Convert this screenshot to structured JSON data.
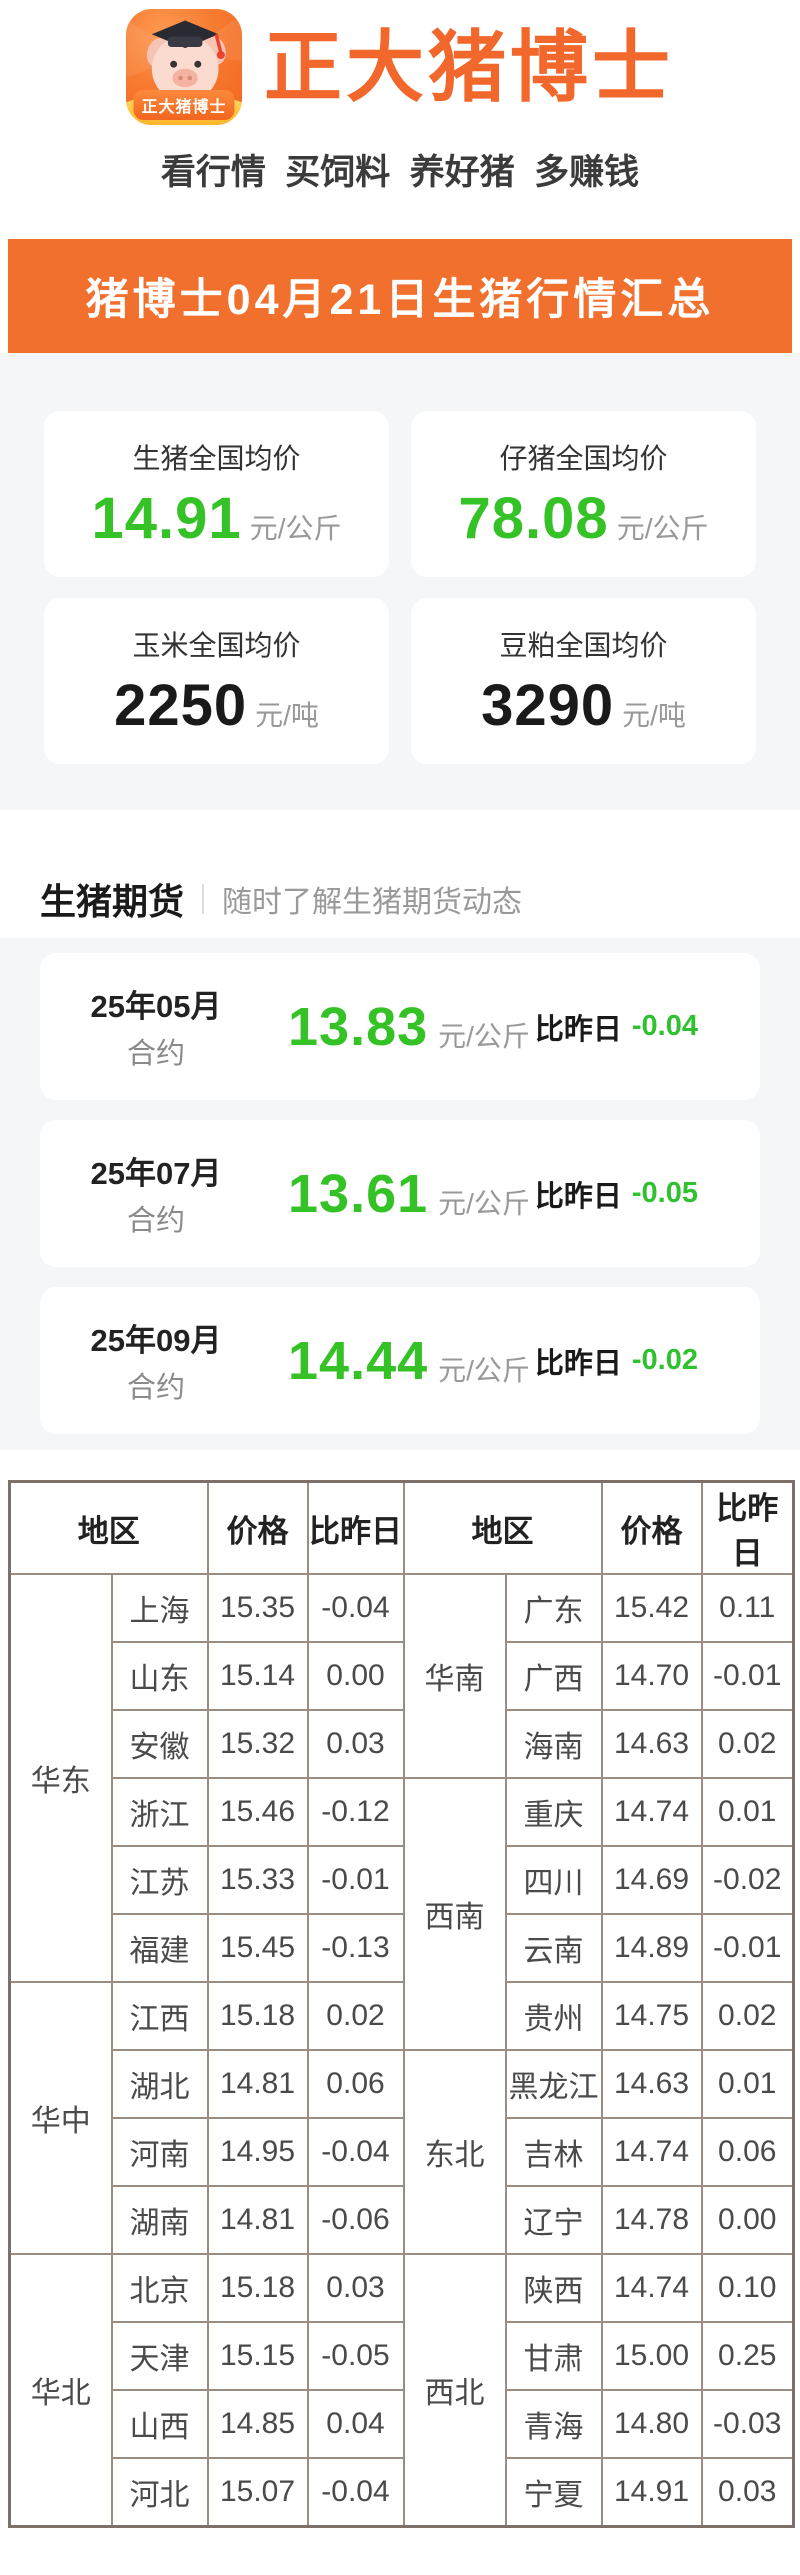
{
  "header": {
    "app_name": "正大猪博士",
    "icon_badge": "正大猪博士",
    "tagline": "看行情  买饲料  养好猪  多赚钱"
  },
  "banner": {
    "title": "猪博士04月21日生猪行情汇总"
  },
  "colors": {
    "brand_orange": "#f2702d",
    "title_orange": "#f2672b",
    "up_red": "#e8150b",
    "down_green": "#2fc12f",
    "value_green": "#35c226",
    "table_border": "#9c8d83",
    "group_cream": "#fdf5eb",
    "section_gray": "#f5f6f7"
  },
  "summary_cards": [
    {
      "label": "生猪全国均价",
      "value": "14.91",
      "unit": "元/公斤",
      "value_color": "green"
    },
    {
      "label": "仔猪全国均价",
      "value": "78.08",
      "unit": "元/公斤",
      "value_color": "green"
    },
    {
      "label": "玉米全国均价",
      "value": "2250",
      "unit": "元/吨",
      "value_color": "dark"
    },
    {
      "label": "豆粕全国均价",
      "value": "3290",
      "unit": "元/吨",
      "value_color": "dark"
    }
  ],
  "futures_section": {
    "title": "生猪期货",
    "subtitle": "随时了解生猪期货动态",
    "cards": [
      {
        "contract_line1": "25年05月",
        "contract_line2": "合约",
        "price": "13.83",
        "unit": "元/公斤",
        "compare_label": "比昨日",
        "change": "-0.04"
      },
      {
        "contract_line1": "25年07月",
        "contract_line2": "合约",
        "price": "13.61",
        "unit": "元/公斤",
        "compare_label": "比昨日",
        "change": "-0.05"
      },
      {
        "contract_line1": "25年09月",
        "contract_line2": "合约",
        "price": "14.44",
        "unit": "元/公斤",
        "compare_label": "比昨日",
        "change": "-0.02"
      }
    ]
  },
  "price_table": {
    "headers": [
      "地区",
      "价格",
      "比昨日",
      "地区",
      "价格",
      "比昨日"
    ],
    "left_groups": [
      {
        "name": "华东",
        "shaded": true,
        "rows": [
          [
            "上海",
            "15.35",
            "-0.04"
          ],
          [
            "山东",
            "15.14",
            "0.00"
          ],
          [
            "安徽",
            "15.32",
            "0.03"
          ],
          [
            "浙江",
            "15.46",
            "-0.12"
          ],
          [
            "江苏",
            "15.33",
            "-0.01"
          ],
          [
            "福建",
            "15.45",
            "-0.13"
          ]
        ]
      },
      {
        "name": "华中",
        "shaded": false,
        "rows": [
          [
            "江西",
            "15.18",
            "0.02"
          ],
          [
            "湖北",
            "14.81",
            "0.06"
          ],
          [
            "河南",
            "14.95",
            "-0.04"
          ],
          [
            "湖南",
            "14.81",
            "-0.06"
          ]
        ]
      },
      {
        "name": "华北",
        "shaded": true,
        "rows": [
          [
            "北京",
            "15.18",
            "0.03"
          ],
          [
            "天津",
            "15.15",
            "-0.05"
          ],
          [
            "山西",
            "14.85",
            "0.04"
          ],
          [
            "河北",
            "15.07",
            "-0.04"
          ]
        ]
      }
    ],
    "right_groups": [
      {
        "name": "华南",
        "shaded": true,
        "rows": [
          [
            "广东",
            "15.42",
            "0.11"
          ],
          [
            "广西",
            "14.70",
            "-0.01"
          ],
          [
            "海南",
            "14.63",
            "0.02"
          ]
        ]
      },
      {
        "name": "西南",
        "shaded": false,
        "rows": [
          [
            "重庆",
            "14.74",
            "0.01"
          ],
          [
            "四川",
            "14.69",
            "-0.02"
          ],
          [
            "云南",
            "14.89",
            "-0.01"
          ],
          [
            "贵州",
            "14.75",
            "0.02"
          ]
        ]
      },
      {
        "name": "东北",
        "shaded": true,
        "rows": [
          [
            "黑龙江",
            "14.63",
            "0.01"
          ],
          [
            "吉林",
            "14.74",
            "0.06"
          ],
          [
            "辽宁",
            "14.78",
            "0.00"
          ]
        ]
      },
      {
        "name": "西北",
        "shaded": false,
        "rows": [
          [
            "陕西",
            "14.74",
            "0.10"
          ],
          [
            "甘肃",
            "15.00",
            "0.25"
          ],
          [
            "青海",
            "14.80",
            "-0.03"
          ],
          [
            "宁夏",
            "14.91",
            "0.03"
          ]
        ]
      }
    ]
  }
}
